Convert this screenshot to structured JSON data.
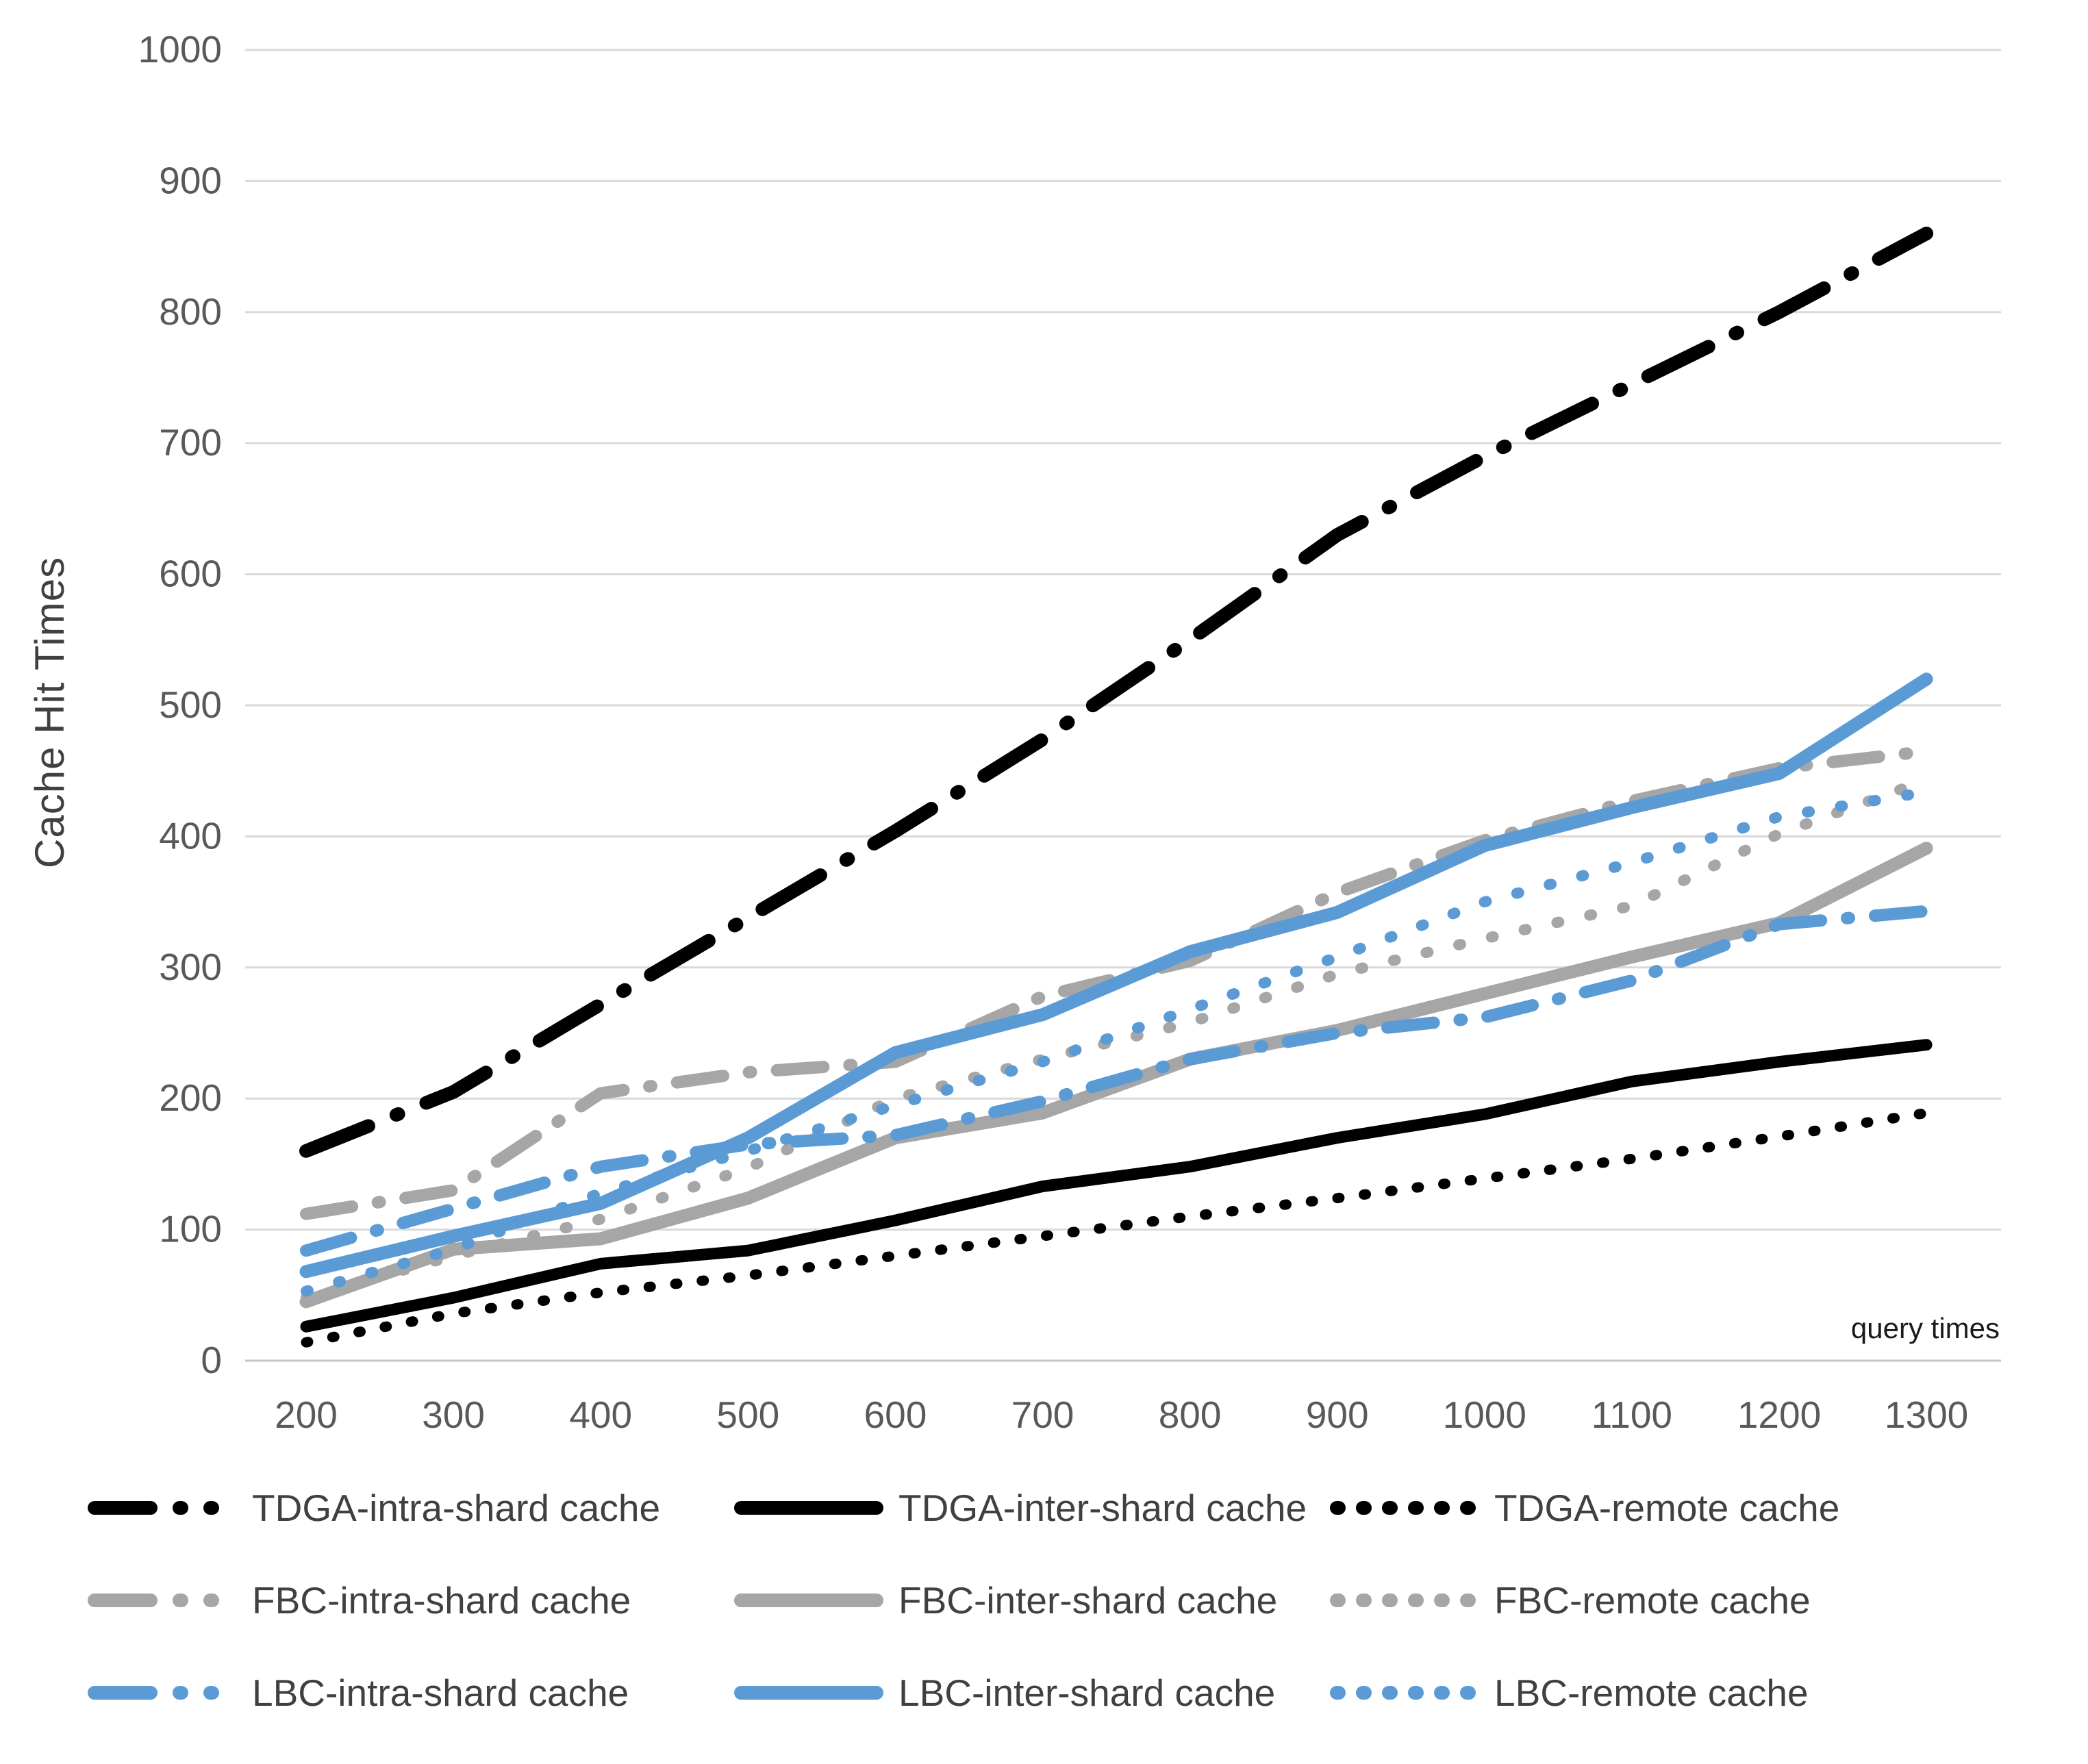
{
  "chart_data": {
    "type": "line",
    "title": "",
    "xlabel": "query times",
    "ylabel": "Cache Hit Times",
    "x": [
      200,
      300,
      400,
      500,
      600,
      700,
      800,
      900,
      1000,
      1100,
      1200,
      1300
    ],
    "xticks": [
      "200",
      "300",
      "400",
      "500",
      "600",
      "700",
      "800",
      "900",
      "1000",
      "1100",
      "1200",
      "1300"
    ],
    "yticks": [
      "0",
      "100",
      "200",
      "300",
      "400",
      "500",
      "600",
      "700",
      "800",
      "900",
      "1000"
    ],
    "ylim": [
      0,
      1000
    ],
    "grid": "horizontal-only",
    "legend_position": "bottom-3-columns",
    "colors": {
      "black": "#000000",
      "gray": "#A6A6A6",
      "blue": "#5B9BD5",
      "gridline": "#D9D9D9",
      "tick_text": "#595959"
    },
    "series": [
      {
        "name": "TDGA-intra-shard cache",
        "color": "#000000",
        "style": "dashdot",
        "values": [
          160,
          205,
          272,
          338,
          404,
          474,
          550,
          630,
          690,
          745,
          800,
          860
        ]
      },
      {
        "name": "TDGA-inter-shard cache",
        "color": "#000000",
        "style": "solid",
        "values": [
          26,
          48,
          74,
          84,
          107,
          133,
          148,
          170,
          188,
          213,
          228,
          241
        ]
      },
      {
        "name": "TDGA-remote cache",
        "color": "#000000",
        "style": "dotted",
        "values": [
          14,
          36,
          52,
          65,
          80,
          95,
          110,
          124,
          139,
          154,
          171,
          189
        ]
      },
      {
        "name": "FBC-intra-shard cache",
        "color": "#A6A6A6",
        "style": "dashdot",
        "values": [
          112,
          130,
          204,
          220,
          228,
          278,
          305,
          357,
          397,
          427,
          452,
          465
        ]
      },
      {
        "name": "FBC-inter-shard cache",
        "color": "#A6A6A6",
        "style": "solid",
        "values": [
          45,
          85,
          93,
          124,
          170,
          189,
          230,
          252,
          280,
          308,
          334,
          391
        ]
      },
      {
        "name": "FBC-remote cache",
        "color": "#A6A6A6",
        "style": "dotted",
        "values": [
          48,
          80,
          108,
          147,
          200,
          230,
          258,
          295,
          322,
          347,
          402,
          443
        ]
      },
      {
        "name": "LBC-intra-shard cache",
        "color": "#5B9BD5",
        "style": "dashdot",
        "values": [
          84,
          116,
          148,
          165,
          172,
          198,
          230,
          250,
          262,
          290,
          333,
          343
        ]
      },
      {
        "name": "LBC-inter-shard cache",
        "color": "#5B9BD5",
        "style": "solid",
        "values": [
          68,
          95,
          120,
          170,
          235,
          264,
          312,
          342,
          393,
          422,
          448,
          520
        ]
      },
      {
        "name": "LBC-remote cache",
        "color": "#5B9BD5",
        "style": "dotted",
        "values": [
          53,
          85,
          128,
          160,
          195,
          228,
          268,
          308,
          350,
          380,
          415,
          434
        ]
      }
    ]
  }
}
